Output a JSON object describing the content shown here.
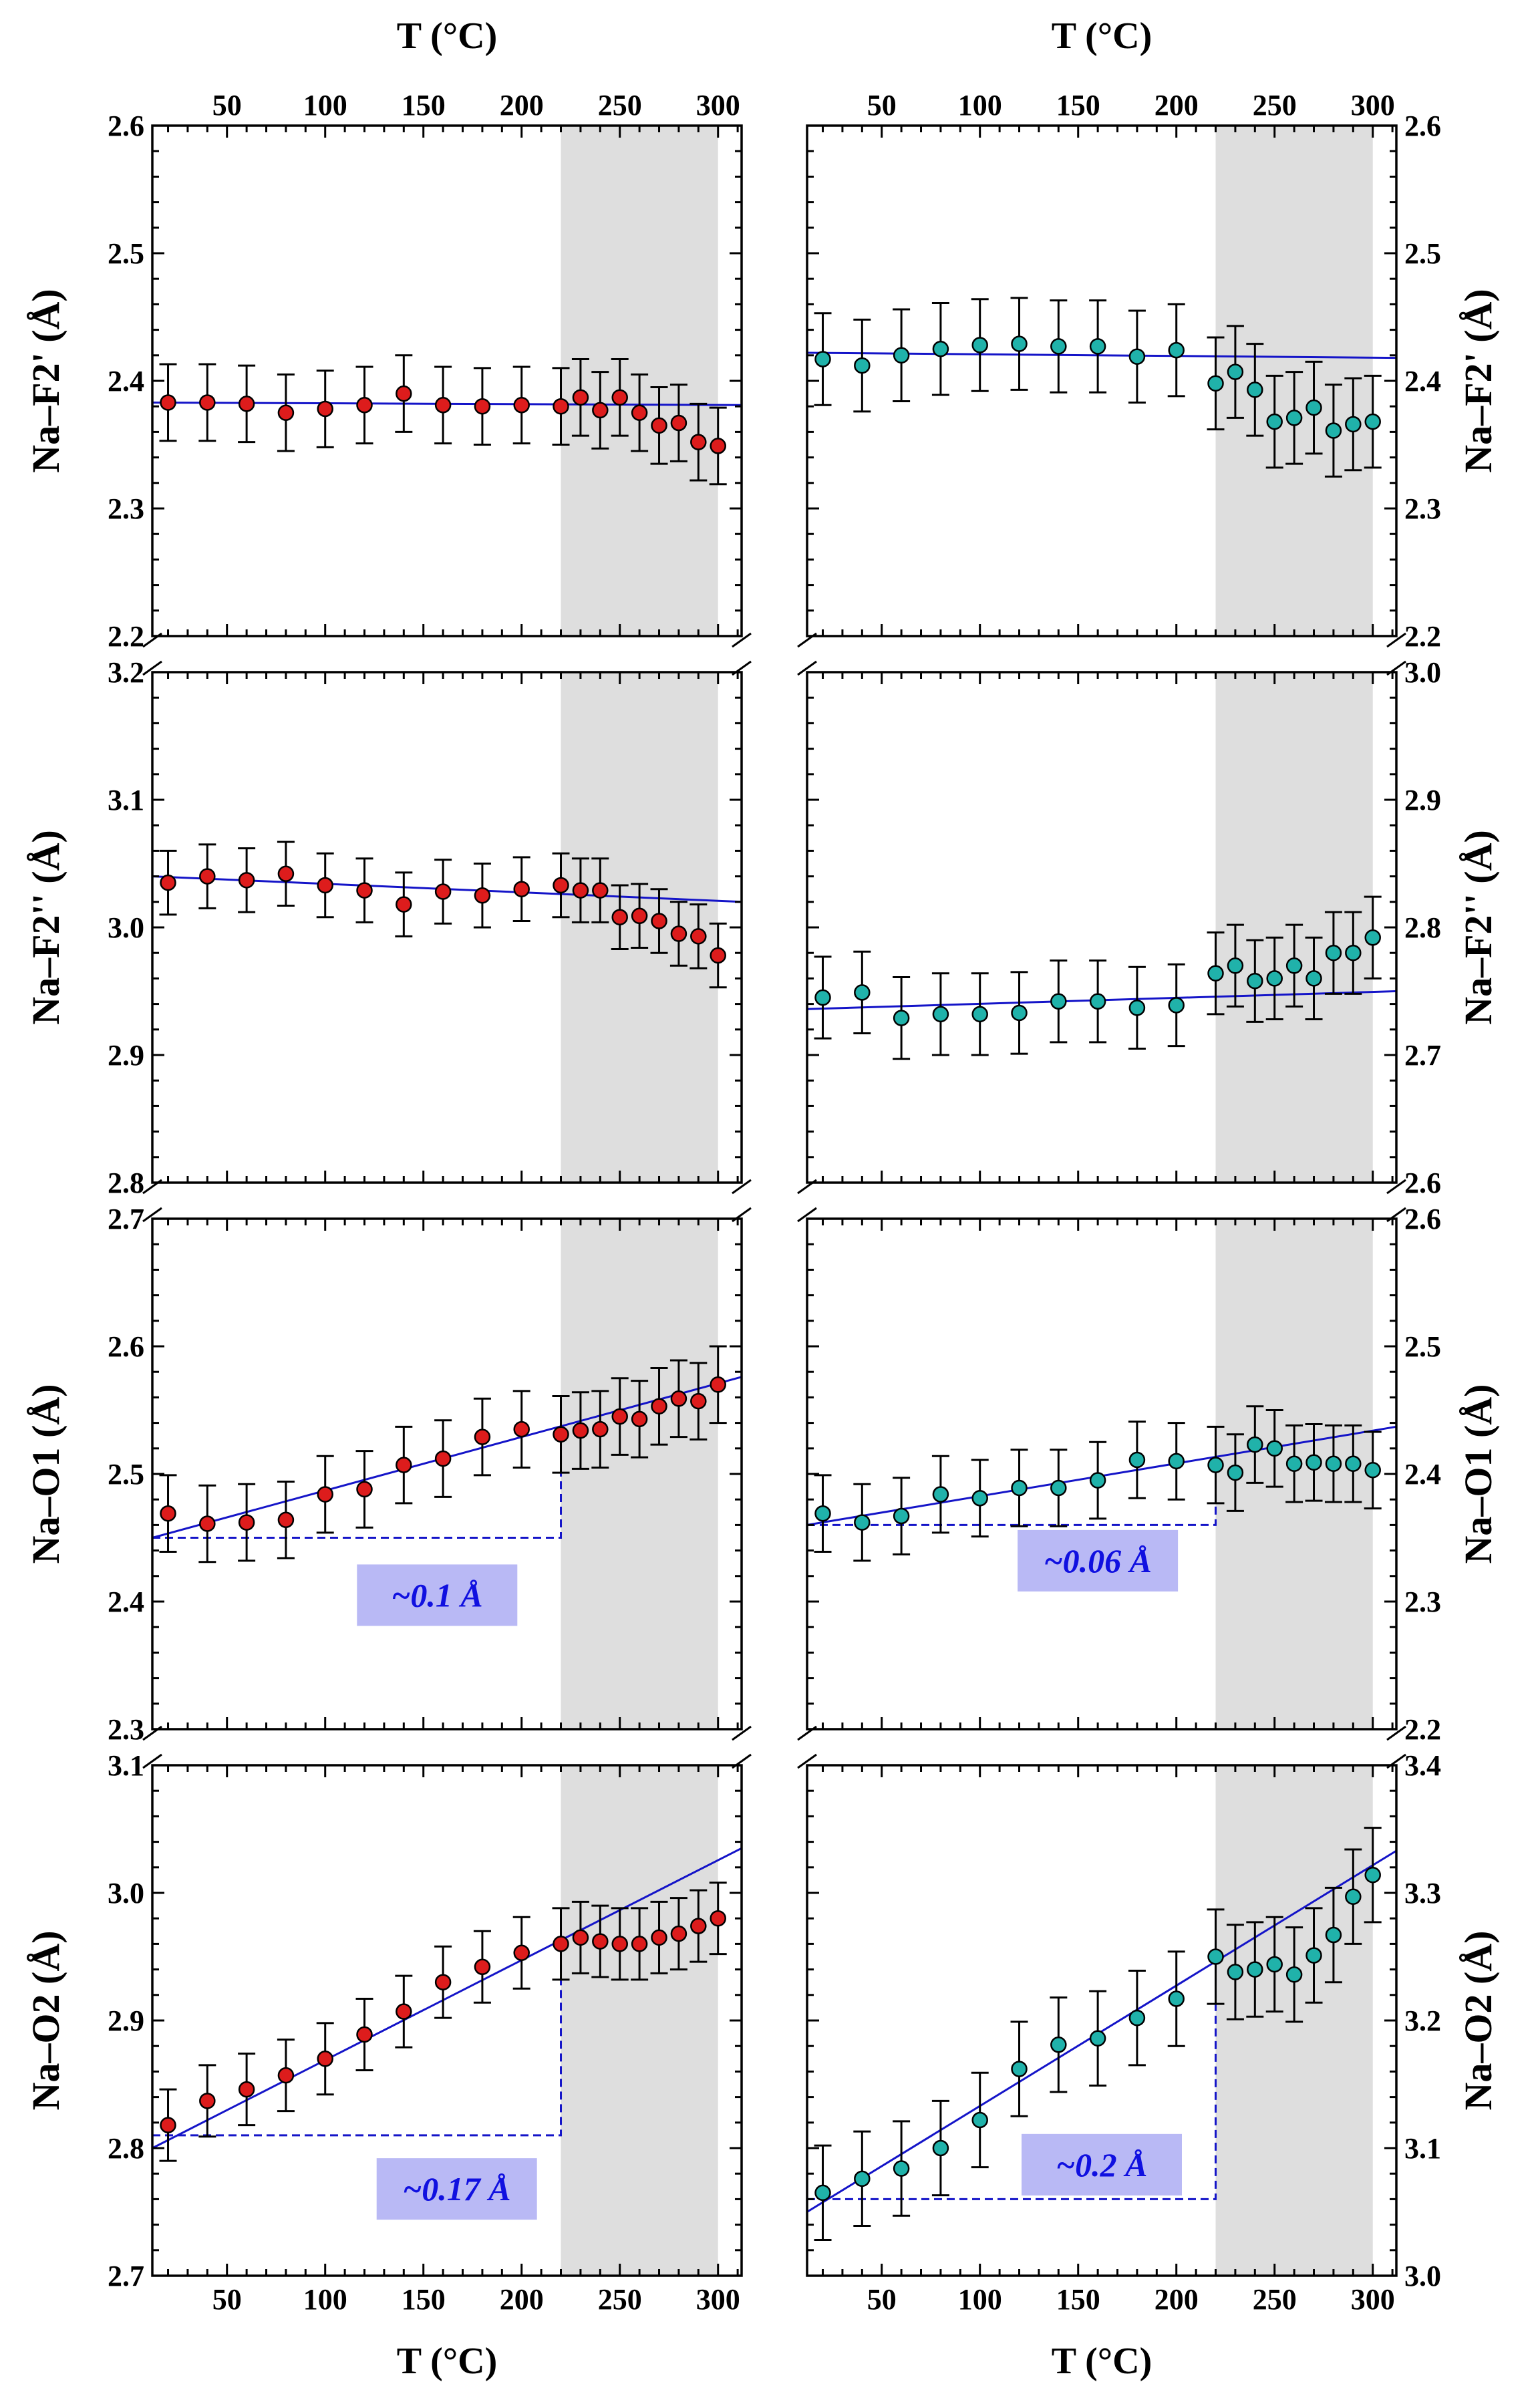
{
  "x_axis": {
    "top_label": "T (°C)",
    "bottom_label": "T (°C)",
    "ticks": [
      50,
      100,
      150,
      200,
      250,
      300
    ],
    "xlim": [
      12,
      312
    ]
  },
  "colors": {
    "left_marker": "#dd1c1c",
    "right_marker": "#20b2aa",
    "fit_line": "#1414c8",
    "annotation_bg": "#b9b9f5",
    "annotation_text": "#1010e0",
    "shade": "#dedede"
  },
  "chart_data": [
    {
      "type": "scatter",
      "column": "left",
      "row": 0,
      "ylabel": "Na–F2' (Å)",
      "ylim": [
        2.2,
        2.6
      ],
      "yticks": [
        2.2,
        2.3,
        2.4,
        2.5,
        2.6
      ],
      "shaded_x": [
        220,
        300
      ],
      "points": {
        "x": [
          20,
          40,
          60,
          80,
          100,
          120,
          140,
          160,
          180,
          200,
          220,
          230,
          240,
          250,
          260,
          270,
          280,
          290,
          300
        ],
        "y": [
          2.383,
          2.383,
          2.382,
          2.375,
          2.378,
          2.381,
          2.39,
          2.381,
          2.38,
          2.381,
          2.38,
          2.387,
          2.377,
          2.387,
          2.375,
          2.365,
          2.367,
          2.352,
          2.349
        ],
        "err": 0.03
      },
      "fit": {
        "x": [
          12,
          312
        ],
        "y": [
          2.383,
          2.381
        ]
      }
    },
    {
      "type": "scatter",
      "column": "left",
      "row": 1,
      "ylabel": "Na–F2'' (Å)",
      "ylim": [
        2.8,
        3.2
      ],
      "yticks": [
        2.8,
        2.9,
        3.0,
        3.1,
        3.2
      ],
      "shaded_x": [
        220,
        300
      ],
      "points": {
        "x": [
          20,
          40,
          60,
          80,
          100,
          120,
          140,
          160,
          180,
          200,
          220,
          230,
          240,
          250,
          260,
          270,
          280,
          290,
          300
        ],
        "y": [
          3.035,
          3.04,
          3.037,
          3.042,
          3.033,
          3.029,
          3.018,
          3.028,
          3.025,
          3.03,
          3.033,
          3.029,
          3.029,
          3.008,
          3.009,
          3.005,
          2.995,
          2.993,
          2.978
        ],
        "err": 0.025
      },
      "fit": {
        "x": [
          12,
          312
        ],
        "y": [
          3.04,
          3.02
        ]
      }
    },
    {
      "type": "scatter",
      "column": "left",
      "row": 2,
      "ylabel": "Na–O1 (Å)",
      "ylim": [
        2.3,
        2.7
      ],
      "yticks": [
        2.3,
        2.4,
        2.5,
        2.6,
        2.7
      ],
      "shaded_x": [
        220,
        300
      ],
      "points": {
        "x": [
          20,
          40,
          60,
          80,
          100,
          120,
          140,
          160,
          180,
          200,
          220,
          230,
          240,
          250,
          260,
          270,
          280,
          290,
          300
        ],
        "y": [
          2.469,
          2.461,
          2.462,
          2.464,
          2.484,
          2.488,
          2.507,
          2.512,
          2.529,
          2.535,
          2.531,
          2.534,
          2.535,
          2.545,
          2.543,
          2.553,
          2.559,
          2.557,
          2.57
        ],
        "err": 0.03
      },
      "fit": {
        "x": [
          12,
          312
        ],
        "y": [
          2.45,
          2.576
        ]
      },
      "bracket": {
        "x0": 12,
        "x1": 220,
        "y_low": 2.45,
        "y_high": 2.538
      },
      "annotation": {
        "text": "~0.1 Å",
        "x": 157,
        "y": 2.405
      }
    },
    {
      "type": "scatter",
      "column": "left",
      "row": 3,
      "ylabel": "Na–O2 (Å)",
      "ylim": [
        2.7,
        3.1
      ],
      "yticks": [
        2.7,
        2.8,
        2.9,
        3.0,
        3.1
      ],
      "shaded_x": [
        220,
        300
      ],
      "points": {
        "x": [
          20,
          40,
          60,
          80,
          100,
          120,
          140,
          160,
          180,
          200,
          220,
          230,
          240,
          250,
          260,
          270,
          280,
          290,
          300
        ],
        "y": [
          2.818,
          2.837,
          2.846,
          2.857,
          2.87,
          2.889,
          2.907,
          2.93,
          2.942,
          2.953,
          2.96,
          2.965,
          2.962,
          2.96,
          2.96,
          2.965,
          2.968,
          2.974,
          2.98
        ],
        "err": 0.028
      },
      "fit": {
        "x": [
          12,
          312
        ],
        "y": [
          2.8,
          3.035
        ]
      },
      "bracket": {
        "x0": 12,
        "x1": 220,
        "y_low": 2.81,
        "y_high": 2.965
      },
      "annotation": {
        "text": "~0.17 Å",
        "x": 167,
        "y": 2.768
      }
    },
    {
      "type": "scatter",
      "column": "right",
      "row": 0,
      "ylabel": "Na–F2' (Å)",
      "ylim": [
        2.2,
        2.6
      ],
      "yticks": [
        2.2,
        2.3,
        2.4,
        2.5,
        2.6
      ],
      "shaded_x": [
        220,
        300
      ],
      "points": {
        "x": [
          20,
          40,
          60,
          80,
          100,
          120,
          140,
          160,
          180,
          200,
          220,
          230,
          240,
          250,
          260,
          270,
          280,
          290,
          300
        ],
        "y": [
          2.417,
          2.412,
          2.42,
          2.425,
          2.428,
          2.429,
          2.427,
          2.427,
          2.419,
          2.424,
          2.398,
          2.407,
          2.393,
          2.368,
          2.371,
          2.379,
          2.361,
          2.366,
          2.368
        ],
        "err": 0.036
      },
      "fit": {
        "x": [
          12,
          312
        ],
        "y": [
          2.422,
          2.418
        ]
      }
    },
    {
      "type": "scatter",
      "column": "right",
      "row": 1,
      "ylabel": "Na–F2'' (Å)",
      "ylim": [
        2.6,
        3.0
      ],
      "yticks": [
        2.6,
        2.7,
        2.8,
        2.9,
        3.0
      ],
      "shaded_x": [
        220,
        300
      ],
      "points": {
        "x": [
          20,
          40,
          60,
          80,
          100,
          120,
          140,
          160,
          180,
          200,
          220,
          230,
          240,
          250,
          260,
          270,
          280,
          290,
          300
        ],
        "y": [
          2.745,
          2.749,
          2.729,
          2.732,
          2.732,
          2.733,
          2.742,
          2.742,
          2.737,
          2.739,
          2.764,
          2.77,
          2.758,
          2.76,
          2.77,
          2.76,
          2.78,
          2.78,
          2.792
        ],
        "err": 0.032
      },
      "fit": {
        "x": [
          12,
          312
        ],
        "y": [
          2.736,
          2.75
        ]
      }
    },
    {
      "type": "scatter",
      "column": "right",
      "row": 2,
      "ylabel": "Na–O1 (Å)",
      "ylim": [
        2.2,
        2.6
      ],
      "yticks": [
        2.2,
        2.3,
        2.4,
        2.5,
        2.6
      ],
      "shaded_x": [
        220,
        300
      ],
      "points": {
        "x": [
          20,
          40,
          60,
          80,
          100,
          120,
          140,
          160,
          180,
          200,
          220,
          230,
          240,
          250,
          260,
          270,
          280,
          290,
          300
        ],
        "y": [
          2.369,
          2.362,
          2.367,
          2.384,
          2.381,
          2.389,
          2.389,
          2.395,
          2.411,
          2.41,
          2.407,
          2.401,
          2.423,
          2.42,
          2.408,
          2.409,
          2.408,
          2.408,
          2.403
        ],
        "err": 0.03
      },
      "fit": {
        "x": [
          12,
          312
        ],
        "y": [
          2.36,
          2.437
        ]
      },
      "bracket": {
        "x0": 12,
        "x1": 220,
        "y_low": 2.36,
        "y_high": 2.408
      },
      "annotation": {
        "text": "~0.06 Å",
        "x": 160,
        "y": 2.332
      }
    },
    {
      "type": "scatter",
      "column": "right",
      "row": 3,
      "ylabel": "Na–O2 (Å)",
      "ylim": [
        3.0,
        3.4
      ],
      "yticks": [
        3.0,
        3.1,
        3.2,
        3.3,
        3.4
      ],
      "shaded_x": [
        220,
        300
      ],
      "points": {
        "x": [
          20,
          40,
          60,
          80,
          100,
          120,
          140,
          160,
          180,
          200,
          220,
          230,
          240,
          250,
          260,
          270,
          280,
          290,
          300
        ],
        "y": [
          3.065,
          3.076,
          3.084,
          3.1,
          3.122,
          3.162,
          3.181,
          3.186,
          3.202,
          3.217,
          3.25,
          3.238,
          3.24,
          3.244,
          3.236,
          3.251,
          3.267,
          3.297,
          3.314
        ],
        "err": 0.037
      },
      "fit": {
        "x": [
          12,
          312
        ],
        "y": [
          3.05,
          3.333
        ]
      },
      "bracket": {
        "x0": 12,
        "x1": 220,
        "y_low": 3.06,
        "y_high": 3.262
      },
      "annotation": {
        "text": "~0.2 Å",
        "x": 162,
        "y": 3.087
      }
    }
  ]
}
